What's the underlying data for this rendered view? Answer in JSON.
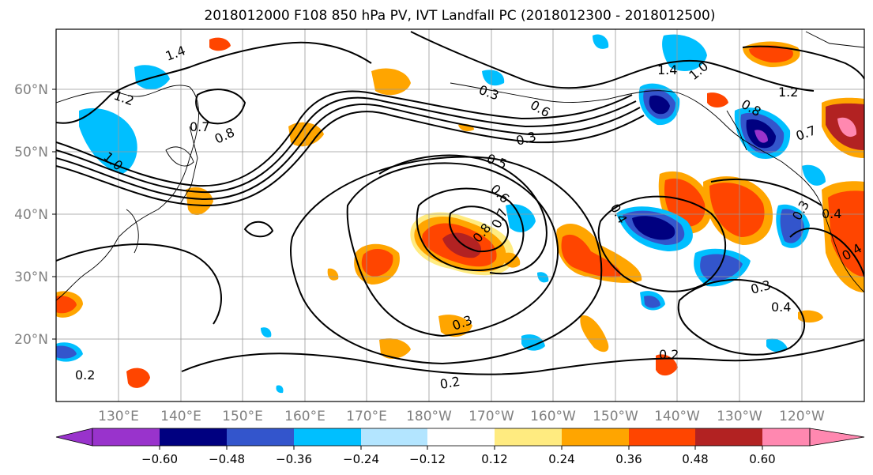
{
  "title": "2018012000 F108 850 hPa PV, IVT Landfall PC (2018012300 - 2018012500)",
  "lat_labels": [
    "60°N",
    "50°N",
    "40°N",
    "30°N",
    "20°N"
  ],
  "lon_labels": [
    "130°E",
    "140°E",
    "150°E",
    "160°E",
    "170°E",
    "180°W",
    "170°W",
    "160°W",
    "150°W",
    "140°W",
    "130°W",
    "120°W"
  ],
  "colorbar": {
    "colors": [
      "#9933cc",
      "#000080",
      "#3355cc",
      "#00bfff",
      "#b3e5ff",
      "#ffffff",
      "#ffeb80",
      "#ffa500",
      "#ff4500",
      "#b22222",
      "#ff88b0"
    ],
    "tick_labels": [
      "−0.60",
      "−0.48",
      "−0.36",
      "−0.24",
      "−0.12",
      "0.12",
      "0.24",
      "0.36",
      "0.48",
      "0.60"
    ]
  },
  "contour_labels": [
    "1.4",
    "1.2",
    "0.7",
    "0.8",
    "1.0",
    "0.3",
    "0.6",
    "0.3",
    "0.5",
    "0.6",
    "0.7",
    "0.8",
    "0.4",
    "0.3",
    "0.4",
    "0.2",
    "0.2",
    "0.2",
    "0.3",
    "1.4",
    "1.0",
    "1.2",
    "0.8",
    "0.7",
    "0.3",
    "0.4",
    "0.4"
  ]
}
